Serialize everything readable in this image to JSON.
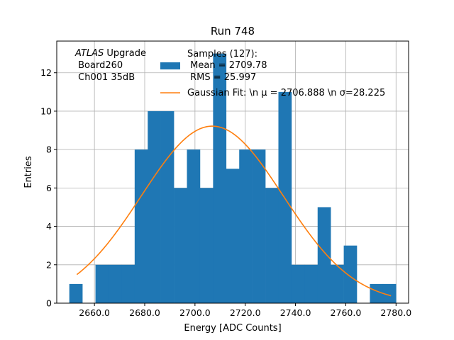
{
  "chart_data": {
    "type": "bar",
    "title": "Run 748",
    "xlabel": "Energy [ADC Counts]",
    "ylabel": "Entries",
    "xlim": [
      2645,
      2785
    ],
    "ylim": [
      0,
      13.65
    ],
    "xticks": [
      2660,
      2680,
      2700,
      2720,
      2740,
      2760,
      2780
    ],
    "xtick_labels": [
      "2660.0",
      "2680.0",
      "2700.0",
      "2720.0",
      "2740.0",
      "2760.0",
      "2780.0"
    ],
    "yticks": [
      0,
      2,
      4,
      6,
      8,
      10,
      12
    ],
    "ytick_labels": [
      "0",
      "2",
      "4",
      "6",
      "8",
      "10",
      "12"
    ],
    "grid": true,
    "bin_edges": [
      2650,
      2655.2,
      2660.4,
      2665.6,
      2670.8,
      2676.0,
      2681.2,
      2686.4,
      2691.6,
      2696.8,
      2702.0,
      2707.2,
      2712.4,
      2717.6,
      2722.8,
      2728.0,
      2733.2,
      2738.4,
      2743.6,
      2748.8,
      2754.0,
      2759.2,
      2764.4,
      2769.6,
      2774.8,
      2780.0
    ],
    "histogram_counts": [
      1,
      0,
      2,
      2,
      2,
      8,
      10,
      10,
      6,
      8,
      6,
      13,
      7,
      8,
      8,
      6,
      11,
      2,
      2,
      5,
      2,
      3,
      0,
      1,
      1
    ],
    "fit": {
      "type": "gaussian",
      "mean": 2706.888,
      "sigma": 28.225,
      "peak": 9.22,
      "x_range": [
        2653,
        2778
      ]
    },
    "legend": {
      "placement": "top-right",
      "histogram_label_lines": [
        "Samples (127):",
        " Mean = 2709.78",
        " RMS = 25.997"
      ],
      "fit_label": "Gaussian Fit: \\n μ = 2706.888 \\n σ=28.225"
    },
    "annotation_lines": [
      "ATLAS Upgrade",
      " Board260",
      " Ch001 35dB"
    ],
    "colors": {
      "histogram": "#1f77b4",
      "fit": "#ff7f0e",
      "grid": "#b0b0b0"
    }
  }
}
